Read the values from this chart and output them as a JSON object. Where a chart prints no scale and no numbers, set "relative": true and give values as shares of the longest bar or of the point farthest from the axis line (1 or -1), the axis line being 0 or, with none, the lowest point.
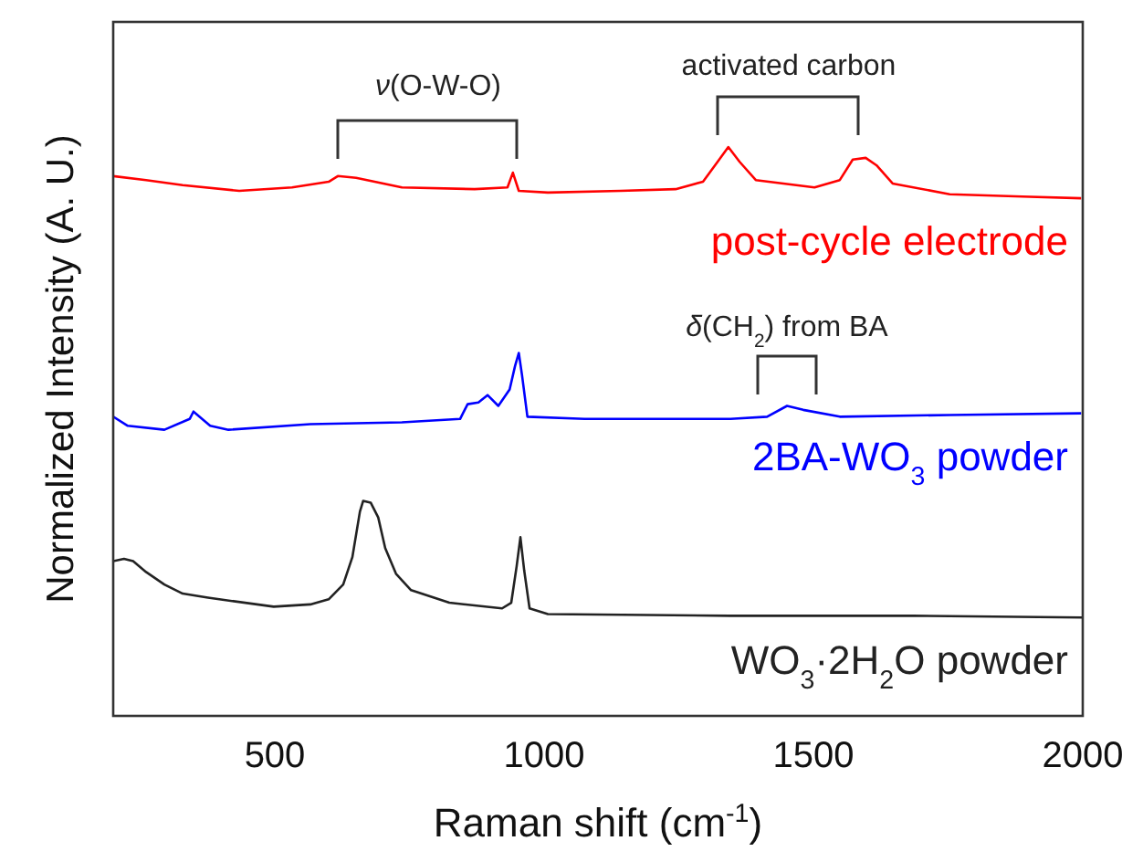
{
  "chart_data": {
    "type": "line",
    "relative": true,
    "xlabel": "Raman shift (cm$^{-1}$)",
    "ylabel": "Normalized Intensity (A. U.)",
    "xlim": [
      200,
      2000
    ],
    "xticks": [
      500,
      1000,
      1500,
      2000
    ],
    "tick_labels": "x",
    "grid": false,
    "marker": "none",
    "line_style": "solid",
    "series": [
      {
        "name": "post-cycle electrode",
        "color": "#ff0000",
        "x": [
          200,
          261,
          329,
          434,
          532,
          600,
          617,
          651,
          736,
          871,
          932,
          942,
          953,
          1007,
          1142,
          1244,
          1295,
          1322,
          1342,
          1363,
          1393,
          1502,
          1549,
          1573,
          1597,
          1617,
          1647,
          1753,
          1888,
          1997
        ],
        "values": [
          0.949,
          0.942,
          0.933,
          0.923,
          0.929,
          0.939,
          0.949,
          0.946,
          0.929,
          0.926,
          0.929,
          0.955,
          0.923,
          0.92,
          0.923,
          0.926,
          0.939,
          0.974,
          1.0,
          0.974,
          0.942,
          0.929,
          0.942,
          0.978,
          0.981,
          0.968,
          0.936,
          0.917,
          0.913,
          0.91
        ]
      },
      {
        "name": "2BA-WO$_{3}$ powder",
        "color": "#0000ff",
        "x": [
          200,
          227,
          295,
          342,
          349,
          380,
          414,
          566,
          736,
          844,
          858,
          878,
          895,
          915,
          936,
          946,
          953,
          959,
          969,
          1075,
          1346,
          1414,
          1451,
          1481,
          1549,
          1753,
          1997
        ],
        "values": [
          0.526,
          0.51,
          0.503,
          0.522,
          0.535,
          0.51,
          0.503,
          0.513,
          0.516,
          0.522,
          0.548,
          0.551,
          0.564,
          0.545,
          0.574,
          0.615,
          0.638,
          0.599,
          0.526,
          0.522,
          0.522,
          0.526,
          0.545,
          0.538,
          0.526,
          0.529,
          0.532
        ]
      },
      {
        "name": "WO$_{3}$·2H$_{2}$O powder",
        "color": "#222222",
        "x": [
          200,
          220,
          237,
          261,
          295,
          329,
          376,
          397,
          498,
          566,
          600,
          627,
          644,
          658,
          664,
          678,
          692,
          705,
          725,
          753,
          824,
          922,
          939,
          949,
          956,
          963,
          973,
          1007,
          1346,
          1685,
          2000
        ],
        "values": [
          0.272,
          0.276,
          0.272,
          0.253,
          0.231,
          0.215,
          0.208,
          0.205,
          0.192,
          0.196,
          0.205,
          0.231,
          0.279,
          0.359,
          0.378,
          0.375,
          0.349,
          0.295,
          0.25,
          0.221,
          0.199,
          0.189,
          0.199,
          0.263,
          0.314,
          0.256,
          0.189,
          0.179,
          0.176,
          0.176,
          0.173
        ]
      }
    ],
    "annotations": [
      "ν(O-W-O)",
      "activated carbon",
      "δ(CH$_{2}$) from BA"
    ]
  }
}
